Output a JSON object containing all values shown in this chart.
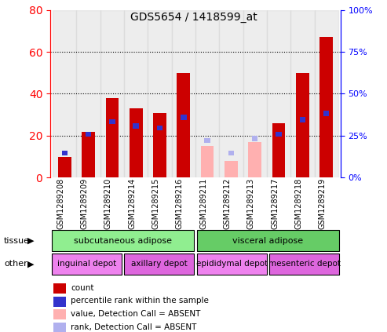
{
  "title": "GDS5654 / 1418599_at",
  "samples": [
    "GSM1289208",
    "GSM1289209",
    "GSM1289210",
    "GSM1289214",
    "GSM1289215",
    "GSM1289216",
    "GSM1289211",
    "GSM1289212",
    "GSM1289213",
    "GSM1289217",
    "GSM1289218",
    "GSM1289219"
  ],
  "count_values": [
    10,
    22,
    38,
    33,
    31,
    50,
    0,
    0,
    0,
    26,
    50,
    67
  ],
  "percentile_values": [
    13,
    22,
    28,
    26,
    25,
    30,
    0,
    0,
    0,
    22,
    29,
    32
  ],
  "absent_value": [
    0,
    0,
    0,
    0,
    0,
    0,
    15,
    8,
    17,
    0,
    0,
    0
  ],
  "absent_rank": [
    0,
    0,
    0,
    0,
    0,
    0,
    19,
    13,
    20,
    0,
    0,
    0
  ],
  "is_absent": [
    false,
    false,
    false,
    false,
    false,
    false,
    true,
    true,
    true,
    false,
    false,
    false
  ],
  "ylim_left": [
    0,
    80
  ],
  "ylim_right": [
    0,
    100
  ],
  "yticks_left": [
    0,
    20,
    40,
    60,
    80
  ],
  "yticks_right": [
    0,
    25,
    50,
    75,
    100
  ],
  "tissue_groups": [
    {
      "label": "subcutaneous adipose",
      "start": 0,
      "end": 6,
      "color": "#90ee90"
    },
    {
      "label": "visceral adipose",
      "start": 6,
      "end": 12,
      "color": "#66cc66"
    }
  ],
  "other_groups": [
    {
      "label": "inguinal depot",
      "start": 0,
      "end": 3,
      "color": "#ee82ee"
    },
    {
      "label": "axillary depot",
      "start": 3,
      "end": 6,
      "color": "#dd66dd"
    },
    {
      "label": "epididymal depot",
      "start": 6,
      "end": 9,
      "color": "#ee82ee"
    },
    {
      "label": "mesenteric depot",
      "start": 9,
      "end": 12,
      "color": "#dd66dd"
    }
  ],
  "color_count": "#cc0000",
  "color_percentile": "#3333cc",
  "color_absent_value": "#ffb0b0",
  "color_absent_rank": "#b0b0ee",
  "color_bg": "#d3d3d3",
  "tissue_label": "tissue",
  "other_label": "other",
  "legend_items": [
    {
      "color": "#cc0000",
      "label": "count"
    },
    {
      "color": "#3333cc",
      "label": "percentile rank within the sample"
    },
    {
      "color": "#ffb0b0",
      "label": "value, Detection Call = ABSENT"
    },
    {
      "color": "#b0b0ee",
      "label": "rank, Detection Call = ABSENT"
    }
  ]
}
